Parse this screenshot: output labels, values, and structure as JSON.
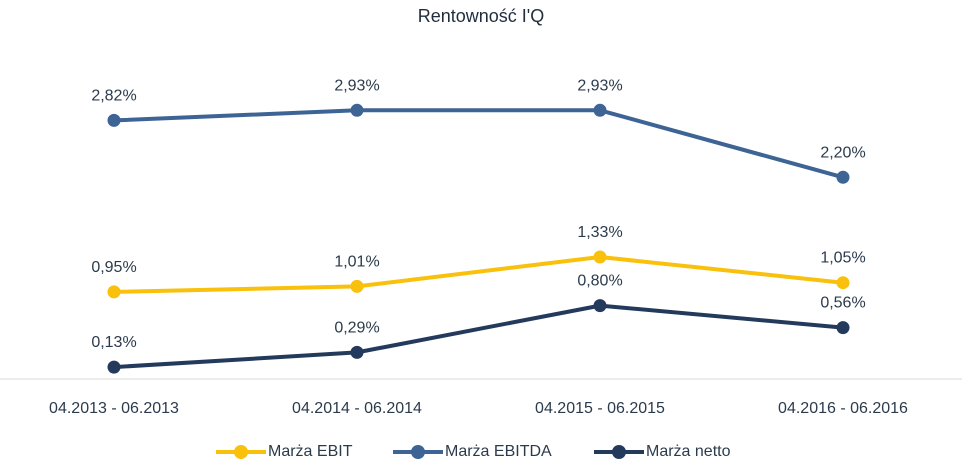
{
  "chart_data": {
    "type": "line",
    "title": "Rentowność I'Q",
    "categories": [
      "04.2013 - 06.2013",
      "04.2014 - 06.2014",
      "04.2015 - 06.2015",
      "04.2016 - 06.2016"
    ],
    "series": [
      {
        "name": "Marża EBIT",
        "values": [
          0.95,
          1.01,
          1.33,
          1.05
        ],
        "labels": [
          "0,95%",
          "1,01%",
          "1,33%",
          "1,05%"
        ],
        "color": "#f9c00c"
      },
      {
        "name": "Marża EBITDA",
        "values": [
          2.82,
          2.93,
          2.93,
          2.2
        ],
        "labels": [
          "2,82%",
          "2,93%",
          "2,93%",
          "2,20%"
        ],
        "color": "#3d6494"
      },
      {
        "name": "Marża netto",
        "values": [
          0.13,
          0.29,
          0.8,
          0.56
        ],
        "labels": [
          "0,13%",
          "0,29%",
          "0,80%",
          "0,56%"
        ],
        "color": "#243a5c"
      }
    ],
    "xlabel": "",
    "ylabel": "",
    "ylim": [
      0,
      3.25
    ],
    "grid": false,
    "legend": "bottom"
  }
}
